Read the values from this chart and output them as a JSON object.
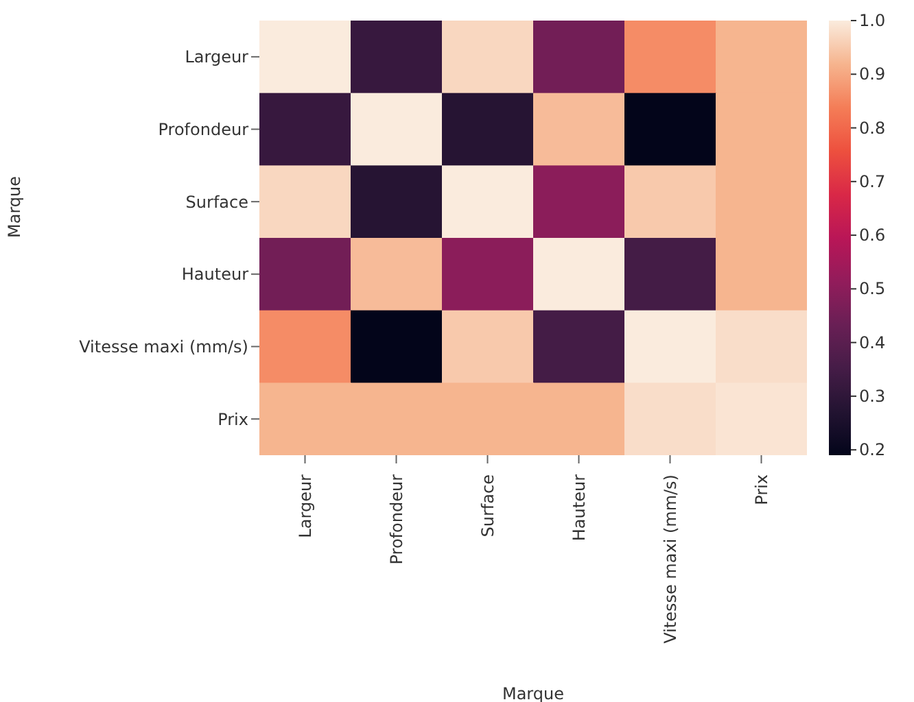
{
  "chart_data": {
    "type": "heatmap",
    "xlabel": "Marque",
    "ylabel": "Marque",
    "categories": [
      "Largeur",
      "Profondeur",
      "Surface",
      "Hauteur",
      "Vitesse maxi (mm/s)",
      "Prix"
    ],
    "y_categories": [
      "Largeur",
      "Profondeur",
      "Surface",
      "Hauteur",
      "Vitesse maxi (mm/s)",
      "Prix"
    ],
    "cells": [
      [
        1.0,
        0.32,
        0.97,
        0.45,
        0.86,
        0.92
      ],
      [
        0.32,
        1.0,
        0.28,
        0.93,
        0.19,
        0.92
      ],
      [
        0.97,
        0.28,
        1.0,
        0.5,
        0.95,
        0.92
      ],
      [
        0.45,
        0.93,
        0.5,
        1.0,
        0.35,
        0.92
      ],
      [
        0.86,
        0.19,
        0.95,
        0.35,
        1.0,
        0.98
      ],
      [
        0.92,
        0.92,
        0.92,
        0.92,
        0.98,
        0.99
      ]
    ],
    "clim": [
      0.19,
      1.0
    ],
    "cticks": [
      0.2,
      0.3,
      0.4,
      0.5,
      0.6,
      0.7,
      0.8,
      0.9,
      {
        "value": 1.0,
        "label": "1.0"
      }
    ]
  }
}
